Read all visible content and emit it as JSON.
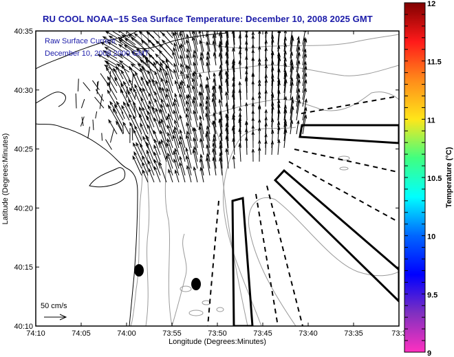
{
  "title": "RU COOL  NOAA−15  Sea Surface Temperature:  December 10, 2008 2025 GMT",
  "overlay": {
    "line1": "Raw Surface Current",
    "line2": "December 10, 2008 2000 GMT"
  },
  "scale": {
    "label": "50 cm/s",
    "icon": "arrow-right-icon"
  },
  "axes": {
    "xlabel": "Longitude (Degrees:Minutes)",
    "ylabel": "Latitude (Degrees:Minutes)",
    "xticks": [
      "74:10",
      "74:05",
      "74:00",
      "73:55",
      "73:50",
      "73:45",
      "73:40",
      "73:35",
      "73:3"
    ],
    "yticks": [
      "40:35",
      "40:30",
      "40:25",
      "40:20",
      "40:15",
      "40:10"
    ]
  },
  "colorbar": {
    "title": "Temperature (°C)",
    "min": 9,
    "max": 12,
    "ticks": [
      "12",
      "11.5",
      "11",
      "10.5",
      "10",
      "9.5",
      "9"
    ],
    "stops": [
      "#800000",
      "#ff1a1a",
      "#ff8c1a",
      "#ffe61a",
      "#40ff80",
      "#00ffff",
      "#0066ff",
      "#0000ff",
      "#8030c0",
      "#ff30c0"
    ]
  },
  "colors": {
    "title": "#1a1aa8",
    "coast": "#000000",
    "bathymetry": "#999999",
    "vectors": "#000000"
  },
  "chart_data": {
    "type": "map",
    "title": "RU COOL  NOAA−15  Sea Surface Temperature:  December 10, 2008 2025 GMT",
    "xlabel": "Longitude (Degrees:Minutes)",
    "ylabel": "Latitude (Degrees:Minutes)",
    "xlim": [
      "74:10",
      "73:30"
    ],
    "ylim": [
      "40:10",
      "40:35"
    ],
    "layers": [
      "coastline",
      "bathymetry contours",
      "raw surface current vectors",
      "dashed channel lines",
      "outlined zones",
      "station markers"
    ],
    "markers": [
      {
        "lon": "74:00",
        "lat": "40:14.5"
      },
      {
        "lon": "73:54",
        "lat": "40:13.5"
      }
    ],
    "colorbar": {
      "label": "Temperature (°C)",
      "range": [
        9,
        12
      ]
    }
  }
}
